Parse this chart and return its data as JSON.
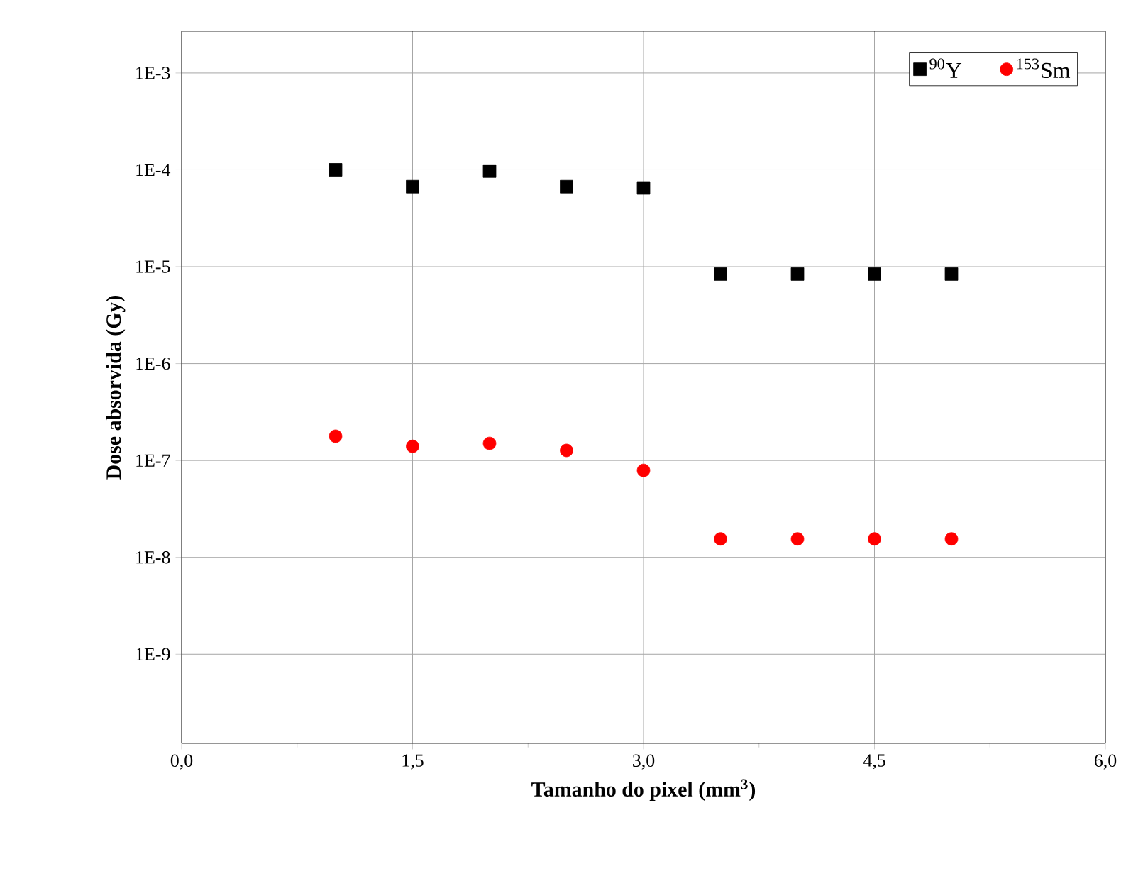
{
  "chart_data": {
    "type": "scatter",
    "xlabel": "Tamanho do pixel (mm$^{3}$)",
    "ylabel": "Dose absorvida (Gy)",
    "x": [
      1,
      1.5,
      2,
      2.5,
      3,
      3.5,
      4,
      4.5,
      5
    ],
    "series": [
      {
        "name": "$^{90}$Y",
        "color": "#000000",
        "marker": "square",
        "values": [
          0.0001,
          6.7e-05,
          9.7e-05,
          6.7e-05,
          6.5e-05,
          8.4e-06,
          8.4e-06,
          8.4e-06,
          8.4e-06
        ]
      },
      {
        "name": "$^{153}$Sm",
        "color": "#ff0000",
        "marker": "circle",
        "values": [
          1.78e-07,
          1.4e-07,
          1.5e-07,
          1.27e-07,
          7.9e-08,
          1.55e-08,
          1.55e-08,
          1.55e-08,
          1.55e-08
        ]
      }
    ],
    "log": "y",
    "grid": true,
    "legend": "top right",
    "xlim": [
      0,
      6
    ],
    "ylim": [
      1.2e-10,
      0.0027
    ],
    "xticks": [
      {
        "value": 0,
        "label": "0,0"
      },
      {
        "value": 1.5,
        "label": "1,5"
      },
      {
        "value": 3,
        "label": "3,0"
      },
      {
        "value": 4.5,
        "label": "4,5"
      },
      {
        "value": 6,
        "label": "6,0"
      }
    ],
    "yticks": [
      {
        "value": 1e-09,
        "label": "1E-9"
      },
      {
        "value": 1e-08,
        "label": "1E-8"
      },
      {
        "value": 1e-07,
        "label": "1E-7"
      },
      {
        "value": 1e-06,
        "label": "1E-6"
      },
      {
        "value": 1e-05,
        "label": "1E-5"
      },
      {
        "value": 0.0001,
        "label": "1E-4"
      },
      {
        "value": 0.001,
        "label": "1E-3"
      }
    ]
  }
}
